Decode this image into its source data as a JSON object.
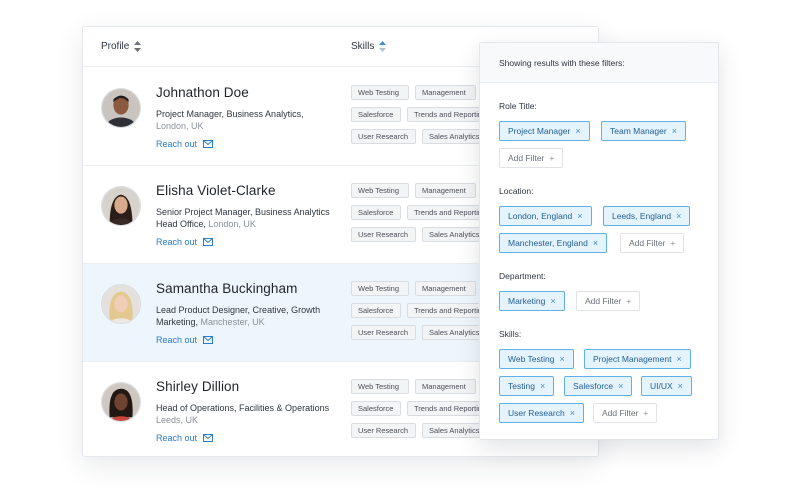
{
  "table": {
    "col_profile": "Profile",
    "col_skills": "Skills",
    "rows": [
      {
        "name": "Johnathon Doe",
        "role": "Project Manager, Business Analytics,",
        "location": "London, UK",
        "reach": "Reach out",
        "skills": [
          "Web Testing",
          "Management",
          "Salesforce",
          "Trends and Reporting",
          "User Research",
          "Sales Analytics"
        ]
      },
      {
        "name": "Elisha Violet-Clarke",
        "role": "Senior Project Manager, Business Analytics",
        "role2": "Head Office,",
        "location": "London, UK",
        "reach": "Reach out",
        "skills": [
          "Web Testing",
          "Management",
          "Salesforce",
          "Trends and Reporting",
          "User Research",
          "Sales Analytics"
        ]
      },
      {
        "name": "Samantha Buckingham",
        "role": "Lead Product Designer, Creative, Growth",
        "role2": "Marketing,",
        "location": "Manchester, UK",
        "reach": "Reach out",
        "skills": [
          "Web Testing",
          "Management",
          "Salesforce",
          "Trends and Reporting",
          "User Research",
          "Sales Analytics"
        ]
      },
      {
        "name": "Shirley Dillion",
        "role": "Head of Operations, Facilities & Operations",
        "location": "Leeds, UK",
        "reach": "Reach out",
        "skills": [
          "Web Testing",
          "Management",
          "Salesforce",
          "Trends and Reporting",
          "User Research",
          "Sales Analytics"
        ]
      }
    ]
  },
  "filters": {
    "title": "Showing results with these filters:",
    "add_label": "Add Filter",
    "groups": [
      {
        "label": "Role Title:",
        "tags": [
          "Project Manager",
          "Team Manager"
        ]
      },
      {
        "label": "Location:",
        "tags": [
          "London, England",
          "Leeds, England",
          "Manchester, England"
        ]
      },
      {
        "label": "Department:",
        "tags": [
          "Marketing"
        ]
      },
      {
        "label": "Skills:",
        "tags": [
          "Web Testing",
          "Project Management",
          "Testing",
          "Salesforce",
          "UI/UX",
          "User Research"
        ]
      }
    ]
  },
  "colors": {
    "accent": "#2a7cc7",
    "tag_border": "#5fb0e6",
    "tag_bg": "#e5f3fc",
    "highlight_row": "#eef6fd"
  },
  "icons": {
    "sort": "sort-arrows-icon",
    "mail": "envelope-icon",
    "remove": "close-icon",
    "add": "plus-icon"
  }
}
